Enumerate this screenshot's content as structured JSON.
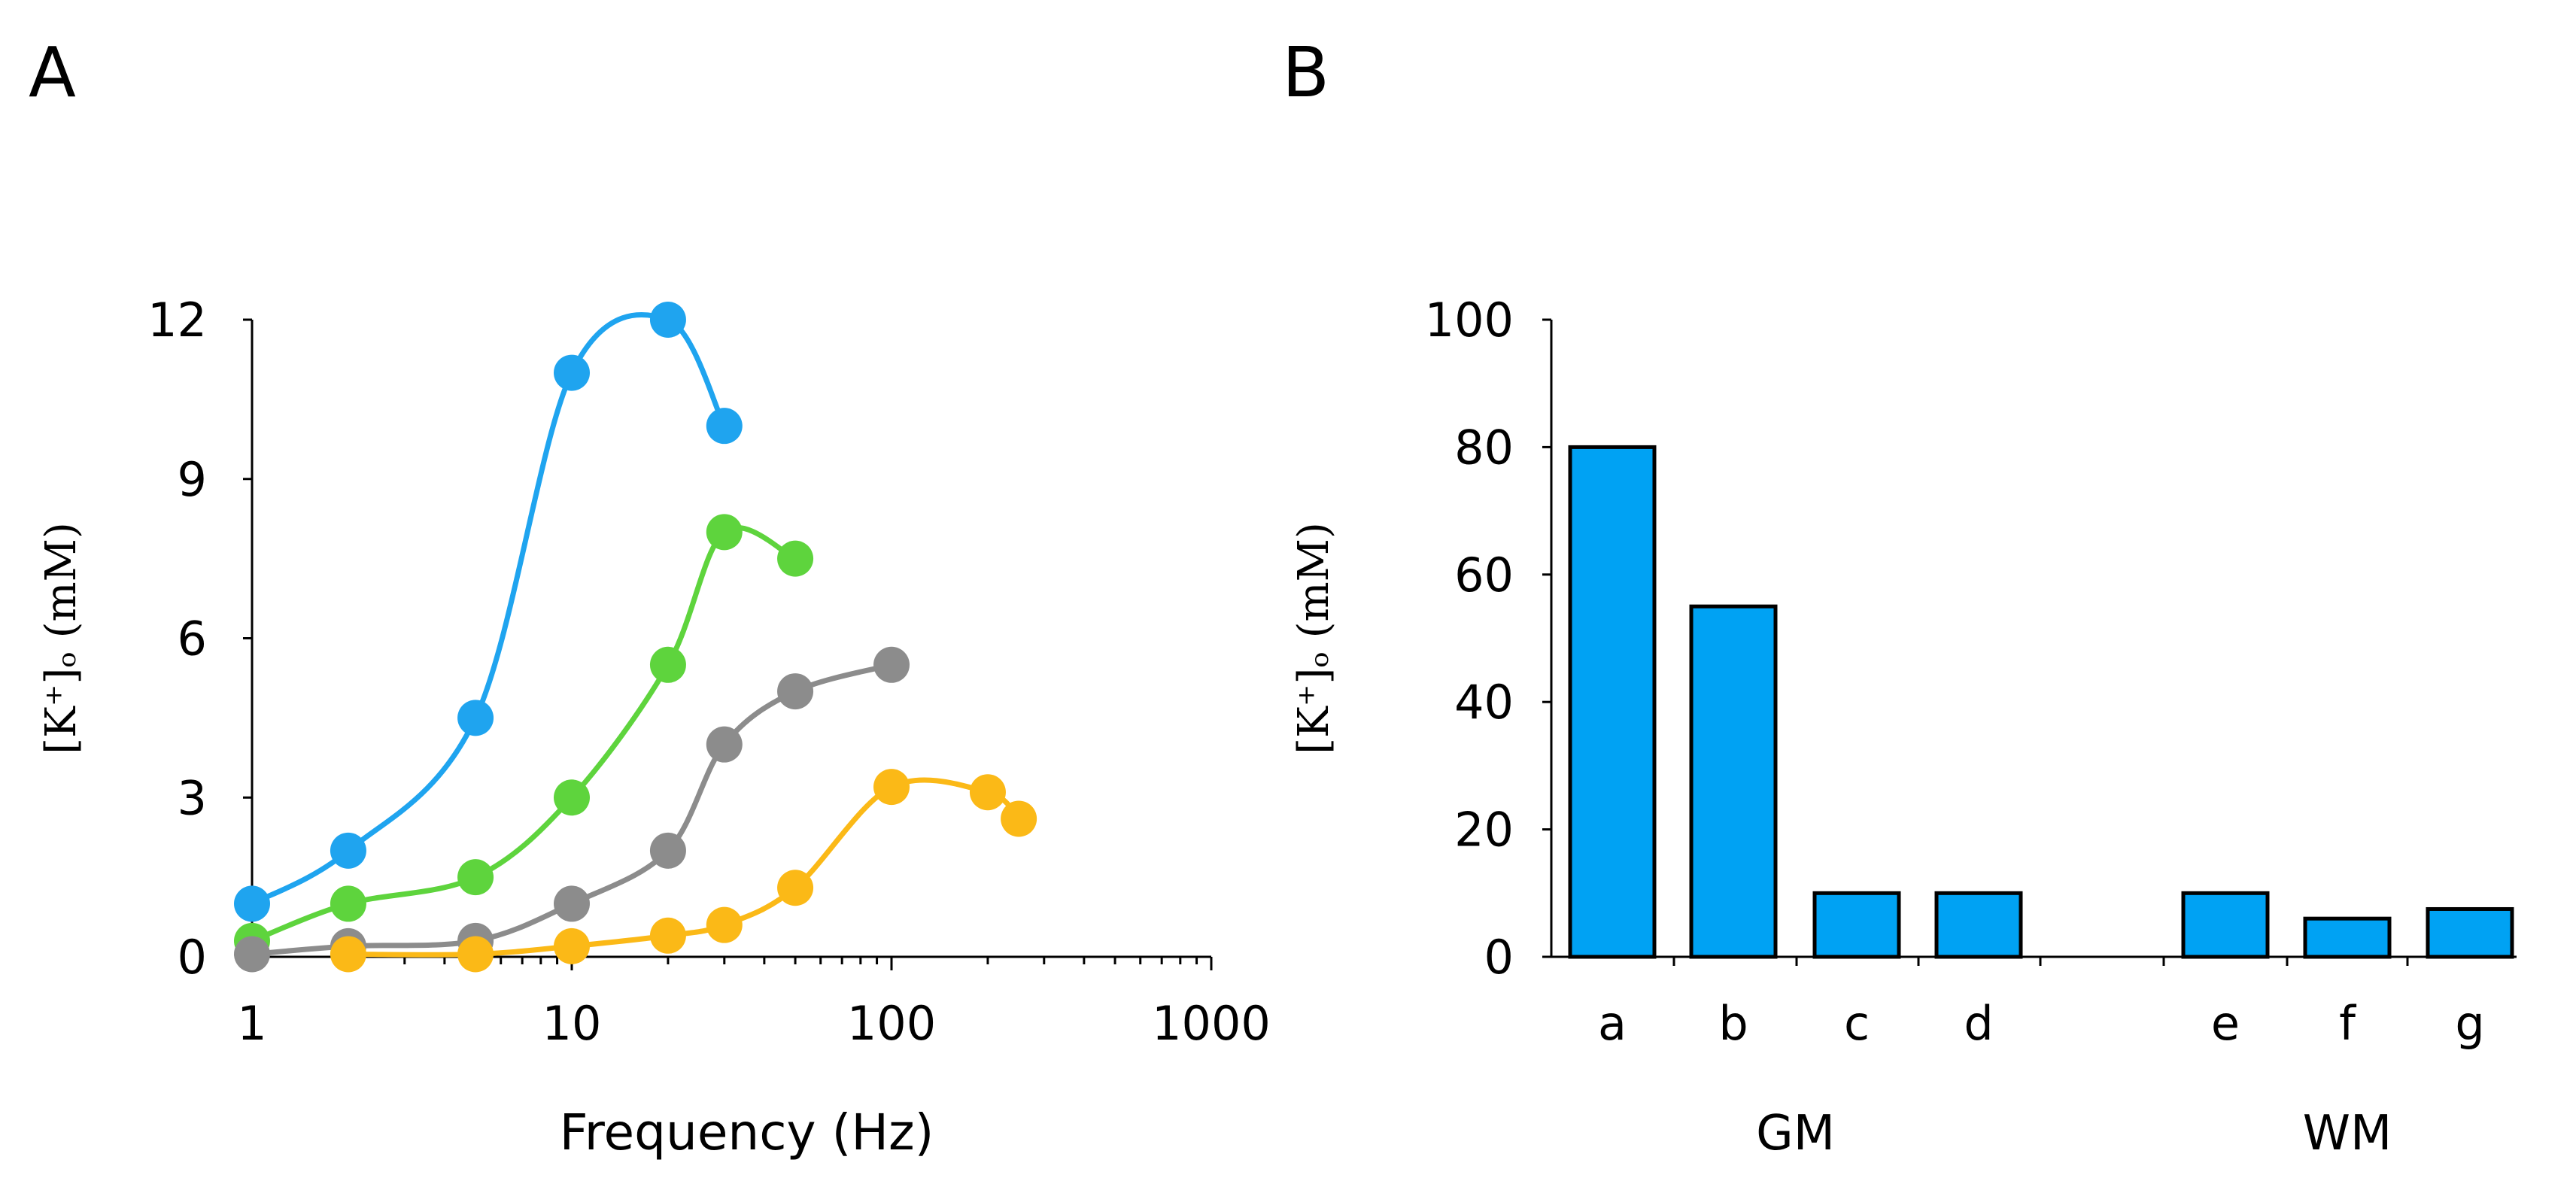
{
  "panels": {
    "a_label": "A",
    "b_label": "B"
  },
  "chart_data": [
    {
      "id": "A",
      "type": "line",
      "title": "",
      "xlabel": "Frequency (Hz)",
      "ylabel": "[K⁺]ₒ (mM)",
      "xscale": "log",
      "xlim": [
        1,
        1000
      ],
      "ylim": [
        0,
        12
      ],
      "xticks": [
        1,
        10,
        100,
        1000
      ],
      "xtick_labels": [
        "1",
        "10",
        "100",
        "1000"
      ],
      "yticks": [
        0,
        3,
        6,
        9,
        12
      ],
      "ytick_labels": [
        "0",
        "3",
        "6",
        "9",
        "12"
      ],
      "series": [
        {
          "name": "blue",
          "color": "#1fa4ef",
          "x": [
            1,
            2,
            5,
            10,
            20,
            30
          ],
          "y": [
            1,
            2,
            4.5,
            11,
            12,
            10
          ]
        },
        {
          "name": "green",
          "color": "#5ed43d",
          "x": [
            1,
            2,
            5,
            10,
            20,
            30,
            50
          ],
          "y": [
            0.3,
            1,
            1.5,
            3,
            5.5,
            8,
            7.5
          ]
        },
        {
          "name": "gray",
          "color": "#8c8c8c",
          "x": [
            1,
            2,
            5,
            10,
            20,
            30,
            50,
            100
          ],
          "y": [
            0.05,
            0.2,
            0.3,
            1,
            2,
            4,
            5,
            5.5
          ]
        },
        {
          "name": "orange",
          "color": "#fbb917",
          "x": [
            2,
            5,
            10,
            20,
            30,
            50,
            100,
            200,
            250
          ],
          "y": [
            0.05,
            0.05,
            0.2,
            0.4,
            0.6,
            1.3,
            3.2,
            3.1,
            2.6
          ]
        }
      ]
    },
    {
      "id": "B",
      "type": "bar",
      "title": "",
      "xlabel": "",
      "ylabel": "[K⁺]ₒ (mM)",
      "ylim": [
        0,
        100
      ],
      "yticks": [
        0,
        20,
        40,
        60,
        80,
        100
      ],
      "ytick_labels": [
        "0",
        "20",
        "40",
        "60",
        "80",
        "100"
      ],
      "bar_color": "#00a2f3",
      "categories": [
        "a",
        "b",
        "c",
        "d",
        "e",
        "f",
        "g"
      ],
      "groups": [
        "GM",
        "GM",
        "GM",
        "GM",
        "WM",
        "WM",
        "WM"
      ],
      "group_labels": [
        "GM",
        "WM"
      ],
      "values": [
        80,
        55,
        10,
        10,
        10,
        6,
        7.5
      ]
    }
  ]
}
